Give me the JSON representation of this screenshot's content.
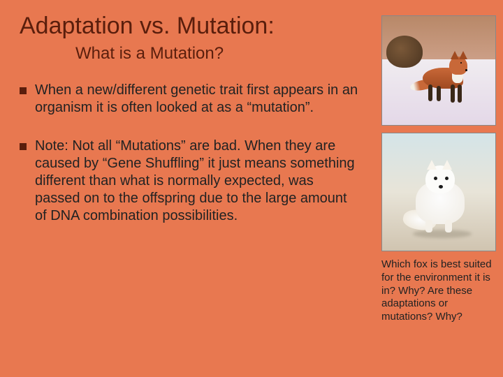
{
  "slide": {
    "background_color": "#e87850",
    "title": "Adaptation vs. Mutation:",
    "subtitle": "What is a Mutation?",
    "title_color": "#5a1e0c",
    "title_fontsize": 34,
    "subtitle_fontsize": 24,
    "bullet_color": "#5a1e0c",
    "body_fontsize": 20,
    "body_color": "#222222",
    "bullets": [
      {
        "text": "When a new/different genetic trait first appears in an organism it is often looked at as a “mutation”."
      },
      {
        "text": "Note: Not all “Mutations” are bad.  When they are caused by “Gene Shuffling” it just means something different than what is normally expected, was passed on to the offspring due to the large amount of DNA combination possibilities."
      }
    ],
    "images": [
      {
        "name": "red-fox-photo",
        "alt": "Red fox standing on snow",
        "palette": {
          "fur": "#c86838",
          "fur_dark": "#a04a20",
          "legs": "#3a2818",
          "chest": "#f4f0e8",
          "snow": "#e4d8e8",
          "sky": "#b88868"
        }
      },
      {
        "name": "arctic-fox-photo",
        "alt": "White arctic fox sitting on snow",
        "palette": {
          "fur": "#fcfcfa",
          "fur_shadow": "#f0ece4",
          "eyes": "#1a1a1a",
          "snow": "#d4e4e8",
          "ground": "#d0c4b0"
        }
      }
    ],
    "caption": "Which fox is best suited for the environment it is in? Why? Are these adaptations or mutations? Why?",
    "caption_fontsize": 15
  }
}
